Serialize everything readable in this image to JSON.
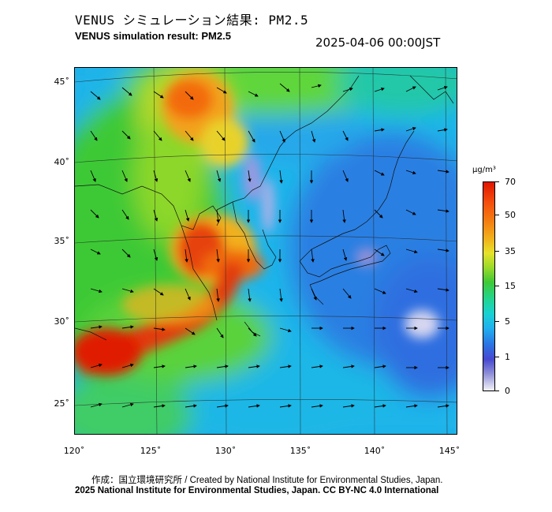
{
  "header": {
    "title_jp": "VENUS シミュレーション結果: PM2.5",
    "title_en": "VENUS simulation result: PM2.5",
    "timestamp": "2025-04-06 00:00JST"
  },
  "map": {
    "latitude_labels": [
      "45˚",
      "40˚",
      "35˚",
      "30˚",
      "25˚"
    ],
    "longitude_labels": [
      "120˚",
      "125˚",
      "130˚",
      "135˚",
      "140˚",
      "145˚"
    ],
    "colors": {
      "sea_low": "#2f7fe0",
      "clean": "#3d5fd8",
      "moderate": "#20cfc8",
      "elevated": "#3ec936",
      "high": "#f2b01a",
      "very_high": "#e01500"
    }
  },
  "colorbar": {
    "unit": "μg/m³",
    "levels": [
      "70",
      "50",
      "35",
      "15",
      "5",
      "1",
      "0"
    ]
  },
  "credits": {
    "line1": "作成：国立環境研究所 / Created by National Institute for Environmental Studies, Japan.",
    "line2": "2025 National Institute for Environmental Studies, Japan. CC BY-NC 4.0 International"
  }
}
